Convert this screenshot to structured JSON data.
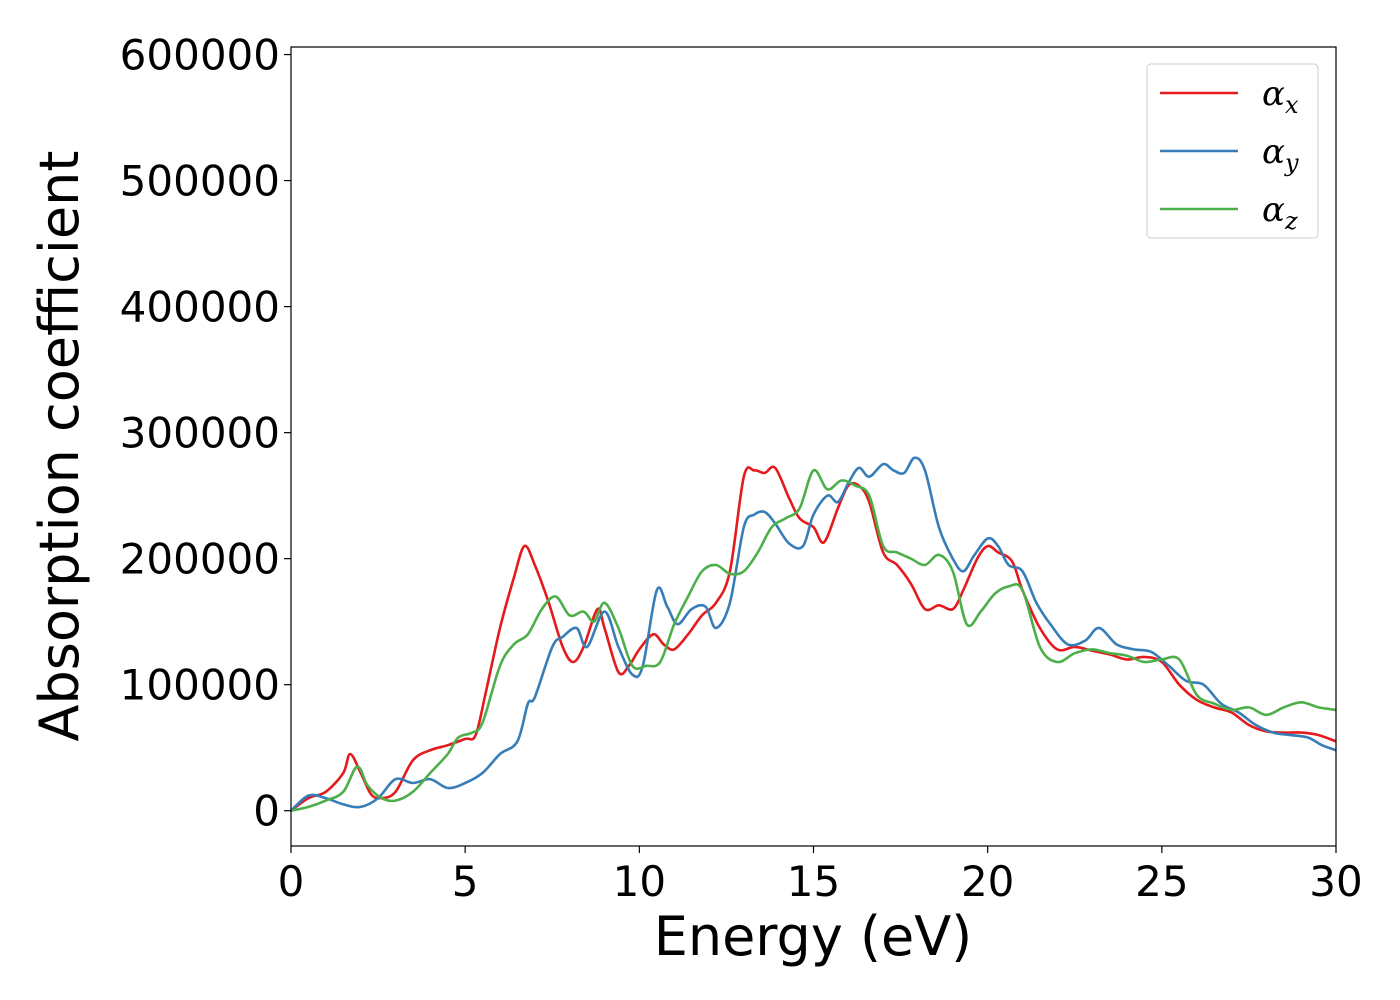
{
  "chart_data": {
    "type": "line",
    "xlabel": "Energy (eV)",
    "ylabel": "Absorption coefficient",
    "xlim": [
      0,
      30
    ],
    "ylim": [
      -28000,
      606000
    ],
    "xticks": [
      0,
      5,
      10,
      15,
      20,
      25,
      30
    ],
    "yticks": [
      0,
      100000,
      200000,
      300000,
      400000,
      500000,
      600000
    ],
    "grid": false,
    "legend_position": "top-right",
    "series": [
      {
        "name": "α_x",
        "legend_base": "α",
        "legend_sub": "x",
        "color": "#e41a1c",
        "x": [
          0,
          0.5,
          1,
          1.5,
          1.7,
          2,
          2.3,
          2.6,
          3,
          3.5,
          4,
          4.5,
          5,
          5.3,
          5.6,
          6,
          6.4,
          6.7,
          7,
          7.4,
          7.8,
          8.1,
          8.4,
          8.8,
          9,
          9.4,
          9.7,
          10,
          10.4,
          10.7,
          11,
          11.4,
          11.8,
          12.2,
          12.6,
          13,
          13.3,
          13.6,
          13.9,
          14.3,
          14.6,
          15,
          15.3,
          15.7,
          16,
          16.3,
          16.6,
          17,
          17.4,
          17.8,
          18.2,
          18.6,
          19,
          19.3,
          19.7,
          20,
          20.3,
          20.7,
          21,
          21.5,
          22,
          22.5,
          23,
          23.5,
          24,
          24.5,
          25,
          25.5,
          26,
          26.5,
          27,
          27.5,
          28,
          28.5,
          29,
          29.5,
          30
        ],
        "y": [
          0,
          10000,
          15000,
          30000,
          45000,
          30000,
          13000,
          10000,
          15000,
          40000,
          48000,
          52000,
          57000,
          60000,
          95000,
          145000,
          185000,
          210000,
          195000,
          165000,
          130000,
          118000,
          130000,
          160000,
          145000,
          110000,
          115000,
          128000,
          140000,
          132000,
          128000,
          140000,
          155000,
          165000,
          190000,
          265000,
          270000,
          268000,
          272000,
          248000,
          232000,
          225000,
          213000,
          240000,
          258000,
          258000,
          245000,
          205000,
          195000,
          180000,
          160000,
          163000,
          160000,
          175000,
          200000,
          210000,
          205000,
          198000,
          175000,
          145000,
          128000,
          130000,
          127000,
          124000,
          120000,
          122000,
          118000,
          100000,
          88000,
          82000,
          78000,
          68000,
          63000,
          62000,
          62000,
          60000,
          55000
        ]
      },
      {
        "name": "α_y",
        "legend_base": "α",
        "legend_sub": "y",
        "color": "#377eb8",
        "x": [
          0,
          0.5,
          1,
          1.5,
          2,
          2.5,
          3,
          3.5,
          4,
          4.5,
          5,
          5.5,
          6,
          6.5,
          6.8,
          7,
          7.5,
          7.8,
          8.2,
          8.5,
          9,
          9.4,
          9.8,
          10.1,
          10.5,
          10.8,
          11.1,
          11.5,
          11.9,
          12.2,
          12.6,
          13,
          13.3,
          13.6,
          13.9,
          14.3,
          14.7,
          15,
          15.4,
          15.7,
          16,
          16.3,
          16.6,
          17,
          17.3,
          17.6,
          17.9,
          18.2,
          18.6,
          19,
          19.3,
          19.6,
          20,
          20.3,
          20.6,
          21,
          21.4,
          21.8,
          22.3,
          22.8,
          23.2,
          23.7,
          24.2,
          24.7,
          25.2,
          25.7,
          26.2,
          26.7,
          27.2,
          27.7,
          28.2,
          28.7,
          29.2,
          29.6,
          30
        ],
        "y": [
          0,
          12000,
          10000,
          5000,
          3000,
          10000,
          25000,
          22000,
          25000,
          18000,
          22000,
          30000,
          45000,
          55000,
          85000,
          90000,
          130000,
          138000,
          145000,
          130000,
          158000,
          130000,
          108000,
          115000,
          175000,
          162000,
          148000,
          160000,
          162000,
          145000,
          165000,
          225000,
          235000,
          237000,
          228000,
          212000,
          210000,
          235000,
          250000,
          245000,
          260000,
          272000,
          265000,
          275000,
          270000,
          268000,
          280000,
          270000,
          225000,
          200000,
          190000,
          202000,
          216000,
          210000,
          195000,
          190000,
          165000,
          148000,
          132000,
          135000,
          145000,
          132000,
          128000,
          126000,
          115000,
          103000,
          100000,
          85000,
          78000,
          68000,
          62000,
          60000,
          58000,
          52000,
          48000
        ]
      },
      {
        "name": "α_z",
        "legend_base": "α",
        "legend_sub": "z",
        "color": "#4daf4a",
        "x": [
          0,
          0.5,
          1,
          1.5,
          1.9,
          2.2,
          2.6,
          3,
          3.5,
          4,
          4.5,
          4.8,
          5.2,
          5.5,
          6,
          6.4,
          6.8,
          7.2,
          7.6,
          8,
          8.4,
          8.7,
          9,
          9.4,
          9.8,
          10.2,
          10.6,
          11,
          11.4,
          11.8,
          12.2,
          12.6,
          13,
          13.4,
          13.8,
          14.2,
          14.6,
          15,
          15.4,
          15.8,
          16.2,
          16.6,
          17,
          17.4,
          17.8,
          18.2,
          18.6,
          19,
          19.4,
          19.8,
          20.2,
          20.6,
          21,
          21.5,
          22,
          22.5,
          23,
          23.5,
          24,
          24.5,
          25,
          25.5,
          26,
          26.5,
          27,
          27.5,
          28,
          28.5,
          29,
          29.5,
          30
        ],
        "y": [
          0,
          3000,
          8000,
          15000,
          35000,
          20000,
          10000,
          8000,
          15000,
          30000,
          45000,
          58000,
          62000,
          70000,
          115000,
          132000,
          140000,
          160000,
          170000,
          155000,
          158000,
          150000,
          165000,
          145000,
          115000,
          115000,
          118000,
          148000,
          170000,
          190000,
          195000,
          188000,
          190000,
          205000,
          225000,
          232000,
          240000,
          270000,
          255000,
          262000,
          258000,
          250000,
          210000,
          205000,
          200000,
          195000,
          203000,
          190000,
          148000,
          158000,
          172000,
          178000,
          175000,
          130000,
          118000,
          125000,
          128000,
          125000,
          123000,
          118000,
          120000,
          120000,
          92000,
          85000,
          80000,
          82000,
          76000,
          82000,
          86000,
          82000,
          80000
        ]
      }
    ]
  }
}
